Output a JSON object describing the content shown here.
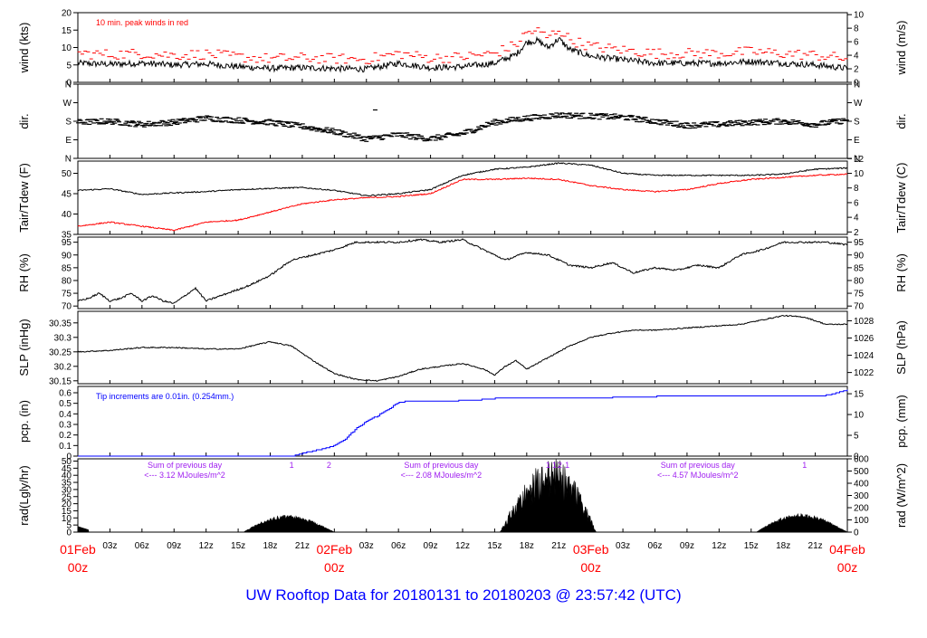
{
  "title": "UW Rooftop Data for 20180131  to  20180203 @ 23:57:42  (UTC)",
  "colors": {
    "black": "#000000",
    "red": "#ff0000",
    "blue": "#0000ff",
    "purple": "#a020f0",
    "title": "#0000ff"
  },
  "time_axis": {
    "range_hours": [
      0,
      72
    ],
    "major": [
      {
        "h": 0,
        "date": "01Feb",
        "hour": "00z"
      },
      {
        "h": 24,
        "date": "02Feb",
        "hour": "00z"
      },
      {
        "h": 48,
        "date": "03Feb",
        "hour": "00z"
      },
      {
        "h": 72,
        "date": "04Feb",
        "hour": "00z"
      }
    ],
    "minor": [
      {
        "h": 3,
        "label": "03z"
      },
      {
        "h": 6,
        "label": "06z"
      },
      {
        "h": 9,
        "label": "09z"
      },
      {
        "h": 12,
        "label": "12z"
      },
      {
        "h": 15,
        "label": "15z"
      },
      {
        "h": 18,
        "label": "18z"
      },
      {
        "h": 21,
        "label": "21z"
      },
      {
        "h": 27,
        "label": "03z"
      },
      {
        "h": 30,
        "label": "06z"
      },
      {
        "h": 33,
        "label": "09z"
      },
      {
        "h": 36,
        "label": "12z"
      },
      {
        "h": 39,
        "label": "15z"
      },
      {
        "h": 42,
        "label": "18z"
      },
      {
        "h": 45,
        "label": "21z"
      },
      {
        "h": 51,
        "label": "03z"
      },
      {
        "h": 54,
        "label": "06z"
      },
      {
        "h": 57,
        "label": "09z"
      },
      {
        "h": 60,
        "label": "12z"
      },
      {
        "h": 63,
        "label": "15z"
      },
      {
        "h": 66,
        "label": "18z"
      },
      {
        "h": 69,
        "label": "21z"
      }
    ]
  },
  "chart_data": [
    {
      "id": "wind",
      "type": "line",
      "ylabel": "wind (kts)",
      "ylabel_right": "wind (m/s)",
      "ylim": [
        0,
        20
      ],
      "yticks": [
        0,
        5,
        10,
        15,
        20
      ],
      "right_ylim": [
        0,
        10.29
      ],
      "right_yticks": [
        0,
        2,
        4,
        6,
        8,
        10
      ],
      "annotation": "10 min. peak winds in red",
      "series": [
        {
          "name": "wind speed",
          "color": "#000000",
          "noise": 0.9,
          "x": [
            0,
            3,
            6,
            9,
            12,
            15,
            18,
            21,
            24,
            27,
            30,
            33,
            36,
            39,
            41,
            42,
            43,
            44,
            45,
            46,
            48,
            51,
            54,
            57,
            60,
            63,
            66,
            69,
            72
          ],
          "y": [
            5.5,
            5.2,
            5.5,
            5.0,
            5.3,
            4.5,
            4.0,
            4.2,
            4.0,
            3.8,
            5.5,
            4.2,
            4.5,
            5.5,
            8.0,
            11.5,
            12.0,
            10.0,
            12.5,
            9.5,
            7.5,
            6.5,
            5.5,
            5.5,
            5.5,
            6.0,
            5.5,
            5.0,
            4.0
          ]
        },
        {
          "name": "10 min peak",
          "color": "#ff0000",
          "style": "dash",
          "offset": 2.8,
          "noise": 1.5,
          "x": [
            0,
            3,
            6,
            9,
            12,
            15,
            18,
            21,
            24,
            27,
            30,
            33,
            36,
            39,
            41,
            42,
            43,
            44,
            45,
            46,
            48,
            51,
            54,
            57,
            60,
            63,
            66,
            69,
            72
          ],
          "y": [
            5.5,
            5.2,
            5.5,
            5.0,
            5.3,
            4.5,
            4.0,
            4.2,
            4.0,
            3.8,
            5.5,
            4.2,
            4.5,
            5.5,
            8.0,
            11.5,
            12.0,
            10.0,
            12.5,
            9.5,
            7.5,
            6.5,
            5.5,
            5.5,
            5.5,
            6.0,
            5.5,
            5.0,
            4.0
          ]
        }
      ]
    },
    {
      "id": "dir",
      "type": "scatter",
      "ylabel": "dir.",
      "ylabel_right": "dir.",
      "ylim": [
        0,
        360
      ],
      "ytick_labels": [
        "N",
        "E",
        "S",
        "W",
        "N"
      ],
      "ytick_values": [
        0,
        90,
        180,
        270,
        360
      ],
      "series": [
        {
          "name": "wind direction",
          "color": "#000000",
          "noise": 14,
          "x": [
            0,
            3,
            6,
            9,
            12,
            15,
            18,
            21,
            24,
            27,
            30,
            33,
            36,
            39,
            42,
            45,
            48,
            51,
            54,
            57,
            60,
            63,
            66,
            69,
            72
          ],
          "y": [
            175,
            180,
            165,
            175,
            195,
            185,
            175,
            155,
            130,
            95,
            115,
            95,
            120,
            175,
            195,
            210,
            205,
            200,
            180,
            160,
            165,
            175,
            180,
            165,
            185
          ]
        }
      ]
    },
    {
      "id": "temp",
      "type": "line",
      "ylabel": "Tair/Tdew (F)",
      "ylabel_right": "Tair/Tdew (C)",
      "ylim": [
        35,
        53
      ],
      "yticks": [
        35,
        40,
        45,
        50
      ],
      "right_ylim": [
        1.67,
        11.67
      ],
      "right_yticks": [
        2,
        4,
        6,
        8,
        10,
        12
      ],
      "series": [
        {
          "name": "Tair",
          "color": "#000000",
          "noise": 0.15,
          "x": [
            0,
            3,
            6,
            9,
            12,
            15,
            18,
            21,
            24,
            27,
            30,
            33,
            36,
            39,
            42,
            45,
            48,
            51,
            54,
            57,
            60,
            63,
            66,
            69,
            72
          ],
          "y": [
            45.8,
            46.2,
            44.8,
            45.2,
            45.5,
            46.0,
            46.3,
            46.5,
            45.8,
            44.5,
            45.0,
            46.0,
            49.5,
            51.0,
            51.5,
            52.5,
            52.0,
            50.0,
            49.5,
            49.5,
            49.5,
            49.5,
            49.8,
            51.0,
            51.3
          ]
        },
        {
          "name": "Tdew",
          "color": "#ff0000",
          "noise": 0.15,
          "x": [
            0,
            3,
            6,
            9,
            12,
            15,
            18,
            21,
            24,
            27,
            30,
            33,
            36,
            39,
            42,
            45,
            48,
            51,
            54,
            57,
            60,
            63,
            66,
            69,
            72
          ],
          "y": [
            37.0,
            38.0,
            37.0,
            36.0,
            38.0,
            38.5,
            40.5,
            42.5,
            43.5,
            44.0,
            44.3,
            45.0,
            48.5,
            48.5,
            48.8,
            48.5,
            47.0,
            46.0,
            45.5,
            46.0,
            47.5,
            48.5,
            49.0,
            49.5,
            49.8
          ]
        }
      ]
    },
    {
      "id": "rh",
      "type": "line",
      "ylabel": "RH (%)",
      "ylabel_right": "RH (%)",
      "ylim": [
        69,
        97
      ],
      "yticks": [
        70,
        75,
        80,
        85,
        90,
        95
      ],
      "right_ylim": [
        69,
        97
      ],
      "right_yticks": [
        70,
        75,
        80,
        85,
        90,
        95
      ],
      "series": [
        {
          "name": "RH",
          "color": "#000000",
          "noise": 0.35,
          "x": [
            0,
            1,
            2,
            3,
            4,
            5,
            6,
            7,
            8,
            9,
            10,
            11,
            12,
            14,
            16,
            18,
            20,
            22,
            24,
            26,
            28,
            30,
            32,
            34,
            36,
            38,
            39,
            40,
            42,
            44,
            46,
            48,
            50,
            52,
            54,
            56,
            58,
            60,
            62,
            64,
            66,
            68,
            70,
            72
          ],
          "y": [
            72,
            73,
            75,
            72,
            73,
            75,
            72,
            74,
            72,
            71,
            74,
            77,
            72,
            75,
            78,
            82,
            88,
            90,
            92,
            95,
            95,
            95,
            96,
            95,
            96,
            92,
            90,
            88,
            91,
            90,
            86,
            85,
            87,
            83,
            85,
            84,
            86,
            85,
            90,
            92,
            95,
            95,
            95,
            94
          ]
        }
      ]
    },
    {
      "id": "slp",
      "type": "line",
      "ylabel": "SLP (inHg)",
      "ylabel_right": "SLP (hPa)",
      "ylim": [
        30.14,
        30.39
      ],
      "yticks": [
        30.15,
        30.2,
        30.25,
        30.3,
        30.35
      ],
      "right_ylim": [
        1020.7,
        1029.1
      ],
      "right_yticks": [
        1022,
        1024,
        1026,
        1028
      ],
      "series": [
        {
          "name": "SLP",
          "color": "#000000",
          "noise": 0.002,
          "x": [
            0,
            3,
            6,
            9,
            12,
            15,
            18,
            20,
            22,
            24,
            26,
            28,
            30,
            32,
            34,
            36,
            38,
            39,
            40,
            41,
            42,
            44,
            46,
            48,
            50,
            52,
            54,
            56,
            58,
            60,
            62,
            64,
            66,
            68,
            70,
            72
          ],
          "y": [
            30.25,
            30.255,
            30.265,
            30.265,
            30.26,
            30.26,
            30.285,
            30.27,
            30.22,
            30.175,
            30.155,
            30.15,
            30.165,
            30.19,
            30.2,
            30.21,
            30.19,
            30.17,
            30.2,
            30.22,
            30.19,
            30.23,
            30.27,
            30.3,
            30.315,
            30.325,
            30.325,
            30.33,
            30.335,
            30.34,
            30.345,
            30.36,
            30.375,
            30.37,
            30.345,
            30.345
          ]
        }
      ]
    },
    {
      "id": "pcp",
      "type": "line",
      "ylabel": "pcp. (in)",
      "ylabel_right": "pcp. (mm)",
      "ylim": [
        0,
        0.66
      ],
      "yticks": [
        0,
        0.1,
        0.2,
        0.3,
        0.4,
        0.5,
        0.6
      ],
      "right_ylim": [
        0,
        16.76
      ],
      "right_yticks": [
        0,
        5,
        10,
        15
      ],
      "annotation": "Tip increments are 0.01in. (0.254mm.)",
      "series": [
        {
          "name": "cumulative precipitation",
          "color": "#0000ff",
          "step": true,
          "x": [
            0,
            20,
            22,
            23,
            24,
            25,
            26,
            27,
            28,
            29,
            30,
            31,
            34,
            37,
            39,
            42,
            46,
            48,
            52,
            56,
            60,
            64,
            68,
            70,
            71,
            72
          ],
          "y": [
            0,
            0,
            0.05,
            0.07,
            0.1,
            0.16,
            0.26,
            0.33,
            0.38,
            0.44,
            0.51,
            0.52,
            0.52,
            0.53,
            0.545,
            0.55,
            0.55,
            0.55,
            0.56,
            0.57,
            0.57,
            0.57,
            0.57,
            0.575,
            0.6,
            0.63
          ]
        }
      ]
    },
    {
      "id": "rad",
      "type": "area",
      "ylabel": "rad(Lgly/hr)",
      "ylabel_right": "rad (W/m^2)",
      "ylim": [
        0,
        51.6
      ],
      "yticks": [
        0,
        5,
        10,
        15,
        20,
        25,
        30,
        35,
        40,
        45,
        50
      ],
      "right_ylim": [
        0,
        600
      ],
      "right_yticks": [
        0,
        100,
        200,
        300,
        400,
        500,
        600
      ],
      "series": [
        {
          "name": "solar radiation",
          "color": "#000000",
          "days": [
            {
              "start": 15.5,
              "peak": 19.5,
              "end": 24.0,
              "amp": 12
            },
            {
              "start": 39.5,
              "peak": 44.5,
              "end": 48.5,
              "amp": 52
            },
            {
              "start": 63.5,
              "peak": 67.5,
              "end": 72.0,
              "amp": 13
            }
          ],
          "pre": {
            "start": 0,
            "end": 1,
            "amp": 4
          }
        }
      ],
      "daily_sums": [
        {
          "h": 10,
          "line1": "Sum of previous day",
          "line2": "<--- 3.12 MJoules/m^2"
        },
        {
          "h": 34,
          "line1": "Sum of previous day",
          "line2": "<--- 2.08 MJoules/m^2"
        },
        {
          "h": 58,
          "line1": "Sum of previous day",
          "line2": "<--- 4.57 MJoules/m^2"
        }
      ],
      "markers": [
        {
          "h": 20.0,
          "label": "1"
        },
        {
          "h": 23.5,
          "label": "2"
        },
        {
          "h": 44.0,
          "label": "1"
        },
        {
          "h": 44.6,
          "label": "1"
        },
        {
          "h": 45.1,
          "label": "2"
        },
        {
          "h": 45.8,
          "label": "1"
        },
        {
          "h": 68.0,
          "label": "1"
        }
      ]
    }
  ]
}
